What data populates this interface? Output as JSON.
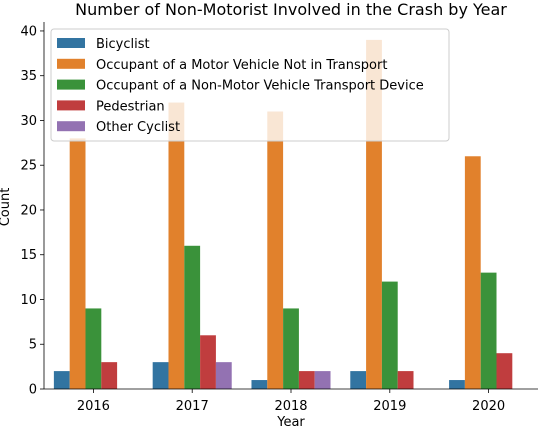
{
  "chart_data": {
    "type": "bar",
    "title": "Number of Non-Motorist Involved in the Crash by Year",
    "xlabel": "Year",
    "ylabel": "Count",
    "categories": [
      "2016",
      "2017",
      "2018",
      "2019",
      "2020"
    ],
    "ylim": [
      0,
      41
    ],
    "yticks": [
      0,
      5,
      10,
      15,
      20,
      25,
      30,
      35,
      40
    ],
    "grid": false,
    "legend_position": "top-left",
    "series": [
      {
        "name": "Bicyclist",
        "color": "#3274a1",
        "values": [
          2,
          3,
          1,
          2,
          1
        ]
      },
      {
        "name": "Occupant of a Motor Vehicle Not in Transport",
        "color": "#e1812c",
        "values": [
          28,
          32,
          31,
          39,
          26
        ]
      },
      {
        "name": "Occupant of a Non-Motor Vehicle Transport Device",
        "color": "#3a923a",
        "values": [
          9,
          16,
          9,
          12,
          13
        ]
      },
      {
        "name": "Pedestrian",
        "color": "#c03d3e",
        "values": [
          3,
          6,
          2,
          2,
          4
        ]
      },
      {
        "name": "Other Cyclist",
        "color": "#9372b2",
        "values": [
          0,
          3,
          2,
          0,
          0
        ]
      }
    ]
  }
}
